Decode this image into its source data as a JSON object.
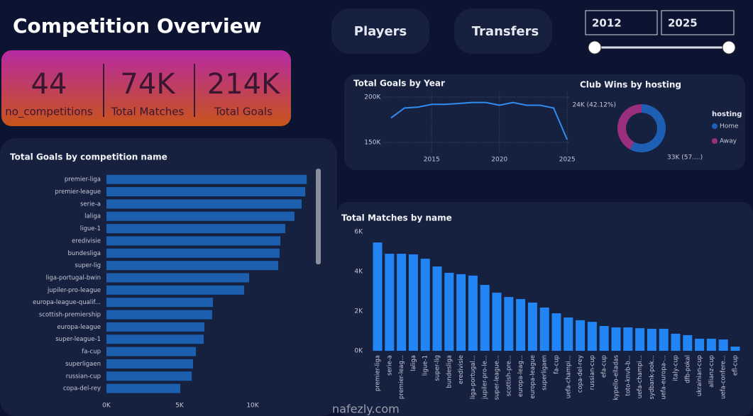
{
  "header": {
    "title": "Competition Overview"
  },
  "kpis": [
    {
      "value": "44",
      "label": "no_competitions"
    },
    {
      "value": "74K",
      "label": "Total Matches"
    },
    {
      "value": "214K",
      "label": "Total Goals"
    }
  ],
  "buttons": [
    "Players",
    "Transfers"
  ],
  "slider": {
    "from": "2012",
    "to": "2025"
  },
  "watermark": "nafezly.com",
  "chart_data": [
    {
      "type": "line",
      "title": "Total Goals by Year",
      "color": "#2f8cf0",
      "grid": true,
      "x": [
        2012,
        2013,
        2014,
        2015,
        2016,
        2017,
        2018,
        2019,
        2020,
        2021,
        2022,
        2023,
        2024,
        2025
      ],
      "values": [
        177000,
        188000,
        189000,
        192000,
        192000,
        193000,
        194000,
        194000,
        191000,
        194000,
        191000,
        191000,
        188000,
        153000
      ],
      "xlim": [
        2009.3,
        2025.2
      ],
      "xticks": [
        2015,
        2020,
        2025
      ],
      "ylim": [
        145000,
        205000
      ],
      "yticks": [
        {
          "value": 150000,
          "label": "150K"
        },
        {
          "value": 200000,
          "label": "200K"
        }
      ]
    },
    {
      "type": "pie",
      "title": "Club Wins by hosting",
      "legend_title": "hosting",
      "legend": "right",
      "categories": [
        "Home",
        "Away"
      ],
      "values": [
        33000,
        24000
      ],
      "colors": [
        "#1e5fb5",
        "#9a2f7e"
      ],
      "value_labels": [
        "33K (57....)",
        "24K (42.12%)"
      ]
    },
    {
      "type": "hbar",
      "title": "Total Goals by competition name",
      "color": "#1b5fae",
      "categories": [
        "premier-liga",
        "premier-league",
        "serie-a",
        "laliga",
        "ligue-1",
        "eredivisie",
        "bundesliga",
        "super-lig",
        "liga-portugal-bwin",
        "jupiler-pro-league",
        "europa-league-qualif...",
        "scottish-premiership",
        "europa-league",
        "super-league-1",
        "fa-cup",
        "superligaen",
        "russian-cup",
        "copa-del-rey"
      ],
      "values": [
        13700,
        13600,
        13350,
        12860,
        12230,
        11900,
        11840,
        11750,
        9760,
        9420,
        7280,
        7230,
        6700,
        6650,
        6120,
        5920,
        5830,
        5050
      ],
      "xlim": [
        0,
        14000
      ],
      "xticks": [
        {
          "value": 0,
          "label": "0K"
        },
        {
          "value": 5000,
          "label": "5K"
        },
        {
          "value": 10000,
          "label": "10K"
        }
      ]
    },
    {
      "type": "bar",
      "title": "Total Matches by name",
      "color": "#2185f5",
      "categories": [
        "premier-liga",
        "serie-a",
        "premier-leag...",
        "laliga",
        "ligue-1",
        "super-lig",
        "bundesliga",
        "eredivisie",
        "liga-portugal...",
        "jupiler-pro-le...",
        "super-league...",
        "scottish-pre...",
        "europa-leag...",
        "europa-league",
        "superligaen",
        "fa-cup",
        "uefa-champi...",
        "copa-del-rey",
        "russian-cup",
        "efa-cup",
        "kypello-elladas",
        "toto-knvb-b...",
        "uefa-champi...",
        "sydbank-pok...",
        "uefa-europa-...",
        "italy-cup",
        "dfb-pokal",
        "ukrainian-cup",
        "allianz-cup",
        "uefa-confere...",
        "efl-cup"
      ],
      "values": [
        5460,
        4890,
        4890,
        4860,
        4640,
        4250,
        3930,
        3860,
        3790,
        3320,
        2930,
        2710,
        2610,
        2430,
        2180,
        1890,
        1680,
        1540,
        1460,
        1250,
        1180,
        1180,
        1140,
        1110,
        1110,
        860,
        790,
        610,
        610,
        570,
        210
      ],
      "ylim": [
        0,
        6200
      ],
      "yticks": [
        {
          "value": 0,
          "label": "0K"
        },
        {
          "value": 2000,
          "label": "2K"
        },
        {
          "value": 4000,
          "label": "4K"
        },
        {
          "value": 6000,
          "label": "6K"
        }
      ]
    }
  ]
}
